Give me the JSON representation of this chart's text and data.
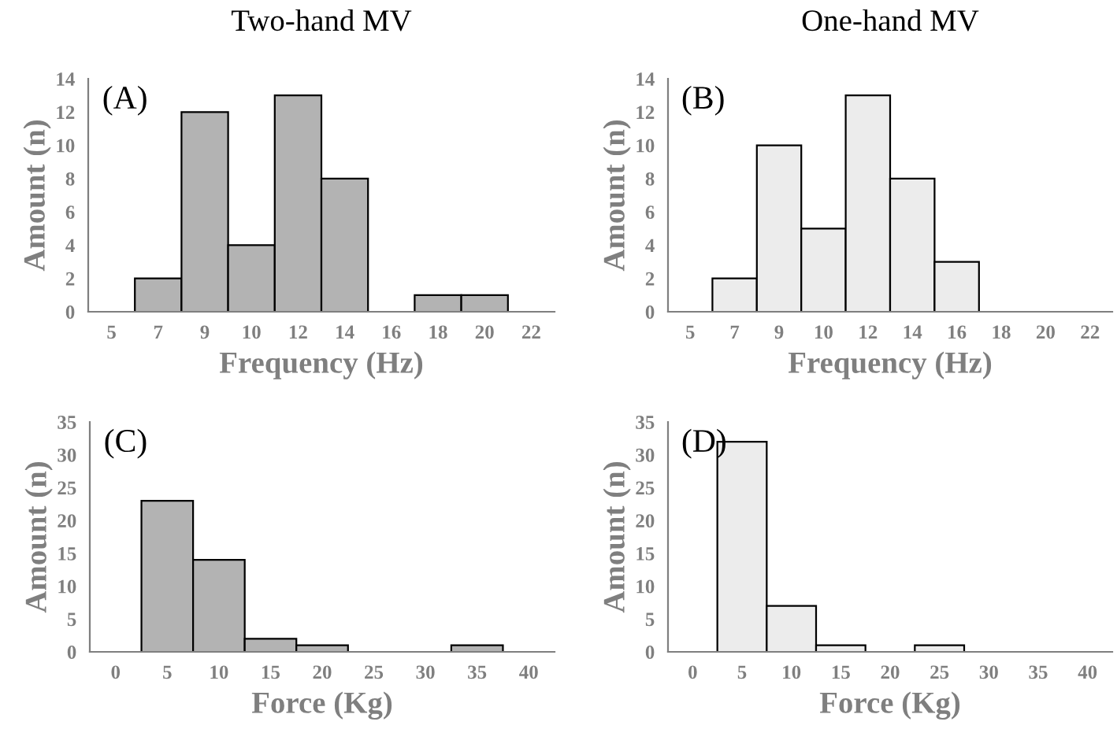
{
  "chart_data": [
    {
      "type": "bar",
      "title": "Two-hand MV",
      "annotations": [
        "(A)"
      ],
      "xlabel": "Frequency (Hz)",
      "ylabel": "Amount (n)",
      "categories": [
        "5",
        "7",
        "9",
        "10",
        "12",
        "14",
        "16",
        "18",
        "20",
        "22"
      ],
      "values": [
        0,
        2,
        12,
        4,
        13,
        8,
        0,
        1,
        1,
        0
      ],
      "color": "#b3b3b3",
      "ylim": [
        0,
        14
      ],
      "yticks": [
        0,
        2,
        4,
        6,
        8,
        10,
        12,
        14
      ],
      "grid": false
    },
    {
      "type": "bar",
      "title": "One-hand MV",
      "annotations": [
        "(B)"
      ],
      "xlabel": "Frequency (Hz)",
      "ylabel": "Amount (n)",
      "categories": [
        "5",
        "7",
        "9",
        "10",
        "12",
        "14",
        "16",
        "18",
        "20",
        "22"
      ],
      "values": [
        0,
        2,
        10,
        5,
        13,
        8,
        3,
        0,
        0,
        0
      ],
      "color": "#ececec",
      "ylim": [
        0,
        14
      ],
      "yticks": [
        0,
        2,
        4,
        6,
        8,
        10,
        12,
        14
      ],
      "grid": false
    },
    {
      "type": "bar",
      "annotations": [
        "(C)"
      ],
      "xlabel": "Force (Kg)",
      "ylabel": "Amount (n)",
      "categories": [
        "0",
        "5",
        "10",
        "15",
        "20",
        "25",
        "30",
        "35",
        "40"
      ],
      "values": [
        0,
        23,
        14,
        2,
        1,
        0,
        0,
        1,
        0
      ],
      "color": "#b3b3b3",
      "ylim": [
        0,
        35
      ],
      "yticks": [
        0,
        5,
        10,
        15,
        20,
        25,
        30,
        35
      ],
      "grid": false
    },
    {
      "type": "bar",
      "annotations": [
        "(D)"
      ],
      "xlabel": "Force (Kg)",
      "ylabel": "Amount (n)",
      "categories": [
        "0",
        "5",
        "10",
        "15",
        "20",
        "25",
        "30",
        "35",
        "40"
      ],
      "values": [
        0,
        32,
        7,
        1,
        0,
        1,
        0,
        0,
        0
      ],
      "color": "#ececec",
      "ylim": [
        0,
        35
      ],
      "yticks": [
        0,
        5,
        10,
        15,
        20,
        25,
        30,
        35
      ],
      "grid": false
    }
  ]
}
